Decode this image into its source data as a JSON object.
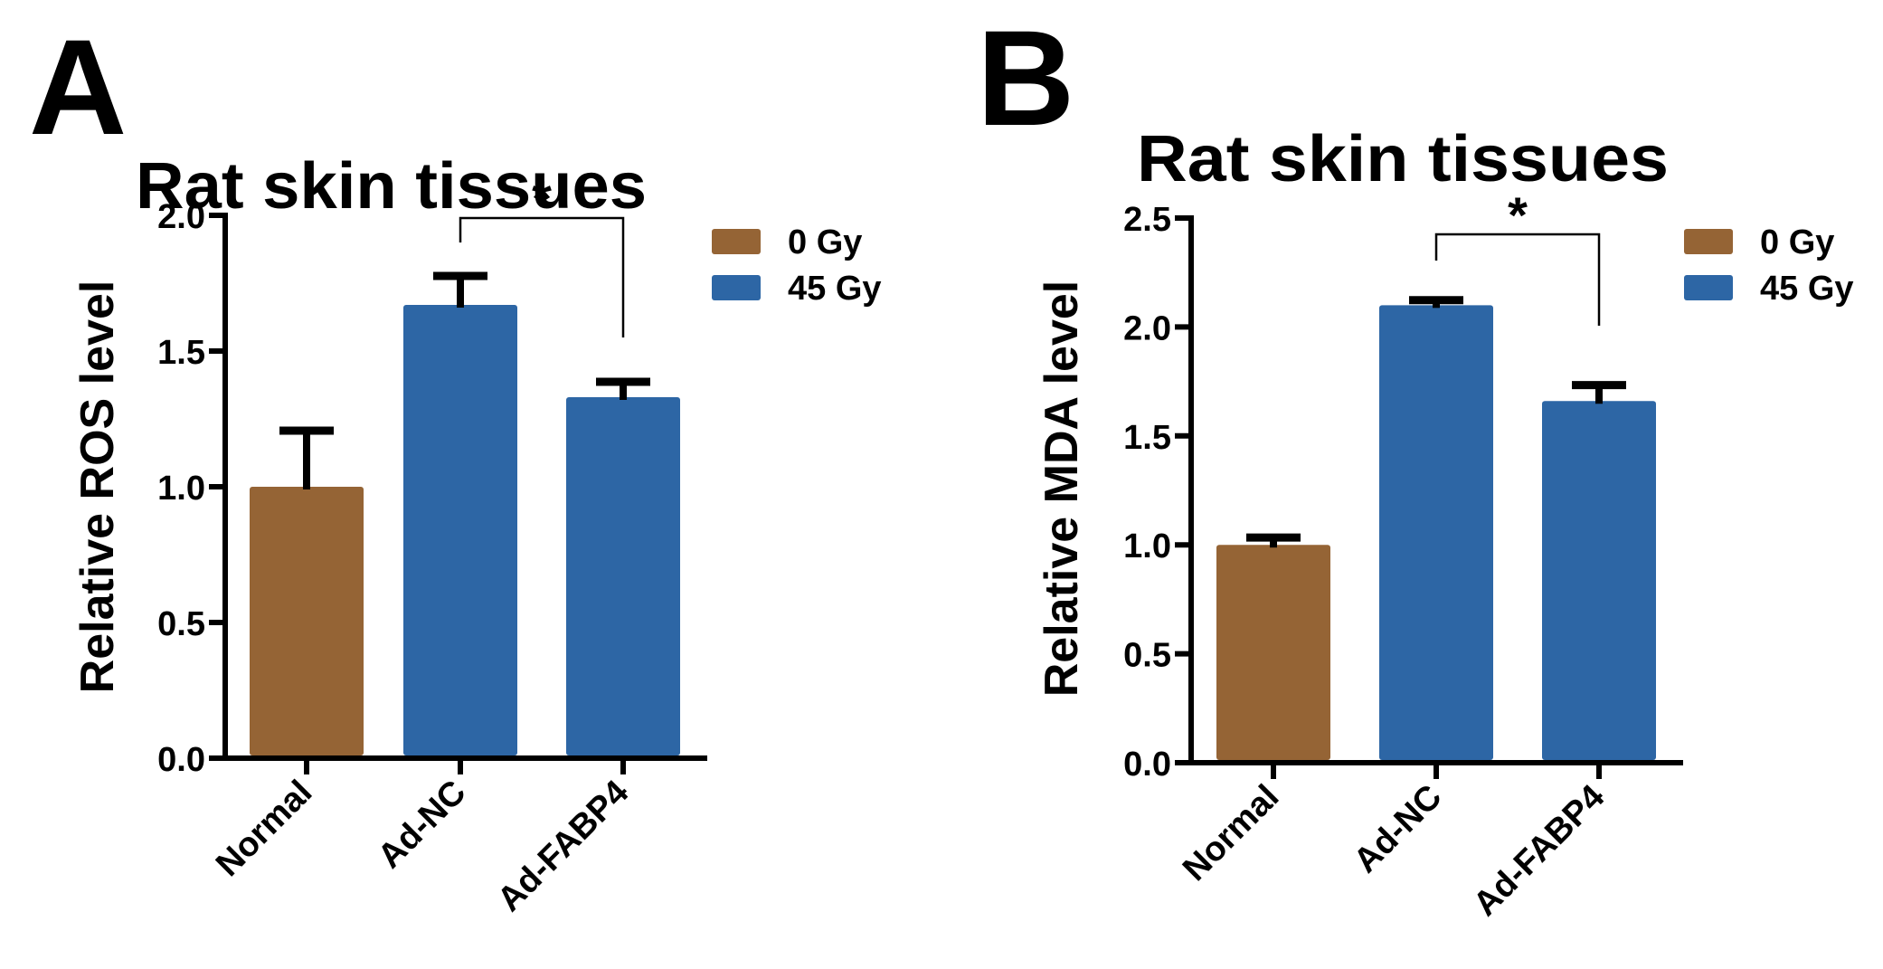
{
  "colors": {
    "0 Gy": "#956435",
    "45 Gy": "#2d66a5",
    "axis": "#000000"
  },
  "chart_data": [
    {
      "type": "bar",
      "panel": "A",
      "title": "Rat skin tissues",
      "xlabel": "",
      "ylabel": "Relative ROS level",
      "ylim": [
        0,
        2.0
      ],
      "yticks": [
        0.0,
        0.5,
        1.0,
        1.5,
        2.0
      ],
      "ytick_labels": [
        "0.0",
        "0.5",
        "1.0",
        "1.5",
        "2.0"
      ],
      "categories": [
        "Normal",
        "Ad-NC",
        "Ad-FABP4"
      ],
      "values": [
        1.0,
        1.67,
        1.33
      ],
      "error_upper": [
        0.22,
        0.12,
        0.07
      ],
      "bar_groups": [
        "0 Gy",
        "45 Gy",
        "45 Gy"
      ],
      "legend": {
        "position": "top-right",
        "entries": [
          "0 Gy",
          "45 Gy"
        ]
      },
      "significance": [
        {
          "from": "Ad-NC",
          "to": "Ad-FABP4",
          "label": "*"
        }
      ],
      "grid": false
    },
    {
      "type": "bar",
      "panel": "B",
      "title": "Rat skin tissues",
      "xlabel": "",
      "ylabel": "Relative MDA level",
      "ylim": [
        0,
        2.5
      ],
      "yticks": [
        0.0,
        0.5,
        1.0,
        1.5,
        2.0,
        2.5
      ],
      "ytick_labels": [
        "0.0",
        "0.5",
        "1.0",
        "1.5",
        "2.0",
        "2.5"
      ],
      "categories": [
        "Normal",
        "Ad-NC",
        "Ad-FABP4"
      ],
      "values": [
        1.0,
        2.1,
        1.66
      ],
      "error_upper": [
        0.05,
        0.04,
        0.09
      ],
      "bar_groups": [
        "0 Gy",
        "45 Gy",
        "45 Gy"
      ],
      "legend": {
        "position": "top-right",
        "entries": [
          "0 Gy",
          "45 Gy"
        ]
      },
      "significance": [
        {
          "from": "Ad-NC",
          "to": "Ad-FABP4",
          "label": "*"
        }
      ],
      "grid": false
    }
  ]
}
